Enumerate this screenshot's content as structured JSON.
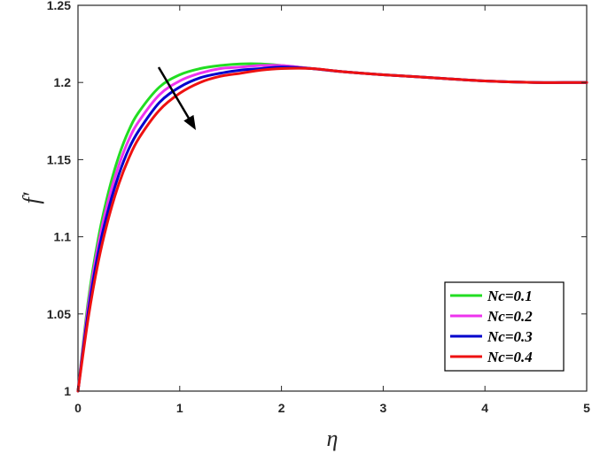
{
  "chart_data": {
    "type": "line",
    "title": "",
    "xlabel": "η",
    "ylabel": "f′",
    "xlim": [
      0,
      5
    ],
    "ylim": [
      1,
      1.25
    ],
    "xticks": [
      "0",
      "1",
      "2",
      "3",
      "4",
      "5"
    ],
    "yticks": [
      "1",
      "1.05",
      "1.1",
      "1.15",
      "1.2",
      "1.25"
    ],
    "grid": false,
    "legend_position": "bottom-right",
    "arrow_annotation": "arrow pointing down-right: curves decrease as Nc increases",
    "series": [
      {
        "name": "Nc=0.1",
        "color": "#22dd22",
        "x": [
          0,
          0.1,
          0.2,
          0.3,
          0.4,
          0.5,
          0.6,
          0.8,
          1.0,
          1.2,
          1.4,
          1.6,
          1.8,
          2.0,
          2.3,
          2.6,
          3.0,
          3.5,
          4.0,
          4.5,
          5.0
        ],
        "y": [
          1.0,
          1.058,
          1.099,
          1.129,
          1.152,
          1.169,
          1.181,
          1.197,
          1.205,
          1.209,
          1.211,
          1.212,
          1.212,
          1.211,
          1.209,
          1.207,
          1.205,
          1.203,
          1.201,
          1.2,
          1.2
        ]
      },
      {
        "name": "Nc=0.2",
        "color": "#ee33ee",
        "x": [
          0,
          0.1,
          0.2,
          0.3,
          0.4,
          0.5,
          0.6,
          0.8,
          1.0,
          1.2,
          1.4,
          1.6,
          1.8,
          2.0,
          2.3,
          2.6,
          3.0,
          3.5,
          4.0,
          4.5,
          5.0
        ],
        "y": [
          1.0,
          1.055,
          1.095,
          1.124,
          1.146,
          1.163,
          1.175,
          1.192,
          1.201,
          1.206,
          1.209,
          1.21,
          1.211,
          1.211,
          1.209,
          1.207,
          1.205,
          1.203,
          1.201,
          1.2,
          1.2
        ]
      },
      {
        "name": "Nc=0.3",
        "color": "#0000cc",
        "x": [
          0,
          0.1,
          0.2,
          0.3,
          0.4,
          0.5,
          0.6,
          0.8,
          1.0,
          1.2,
          1.4,
          1.6,
          1.8,
          2.0,
          2.3,
          2.6,
          3.0,
          3.5,
          4.0,
          4.5,
          5.0
        ],
        "y": [
          1.0,
          1.051,
          1.09,
          1.118,
          1.14,
          1.157,
          1.169,
          1.187,
          1.197,
          1.203,
          1.206,
          1.208,
          1.209,
          1.21,
          1.209,
          1.207,
          1.205,
          1.203,
          1.201,
          1.2,
          1.2
        ]
      },
      {
        "name": "Nc=0.4",
        "color": "#ee1111",
        "x": [
          0,
          0.1,
          0.2,
          0.3,
          0.4,
          0.5,
          0.6,
          0.8,
          1.0,
          1.2,
          1.4,
          1.6,
          1.8,
          2.0,
          2.3,
          2.6,
          3.0,
          3.5,
          4.0,
          4.5,
          5.0
        ],
        "y": [
          1.0,
          1.047,
          1.084,
          1.112,
          1.134,
          1.151,
          1.164,
          1.182,
          1.193,
          1.2,
          1.204,
          1.206,
          1.208,
          1.209,
          1.209,
          1.207,
          1.205,
          1.203,
          1.201,
          1.2,
          1.2
        ]
      }
    ]
  }
}
